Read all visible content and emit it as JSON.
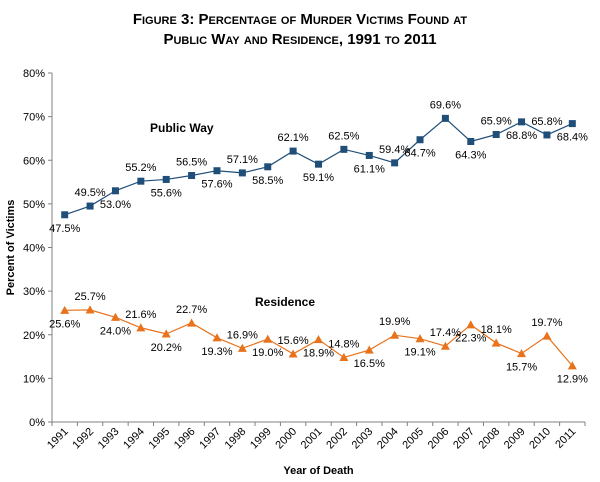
{
  "chart_data": {
    "type": "line",
    "title_line1": "Figure 3: Percentage of Murder Victims Found at",
    "title_line2": "Public Way and Residence, 1991 to 2011",
    "xlabel": "Year of Death",
    "ylabel": "Percent of Victims",
    "ylim": [
      0,
      80
    ],
    "yticks": [
      "0%",
      "10%",
      "20%",
      "30%",
      "40%",
      "50%",
      "60%",
      "70%",
      "80%"
    ],
    "grid": false,
    "x": [
      "1991",
      "1992",
      "1993",
      "1994",
      "1995",
      "1996",
      "1997",
      "1998",
      "1999",
      "2000",
      "2001",
      "2002",
      "2003",
      "2004",
      "2005",
      "2006",
      "2007",
      "2008",
      "2009",
      "2010",
      "2011"
    ],
    "series": [
      {
        "name": "Public Way",
        "color": "#1f4e79",
        "marker": "square",
        "values": [
          47.5,
          49.5,
          53.0,
          55.2,
          55.6,
          56.5,
          57.6,
          57.1,
          58.5,
          62.1,
          59.1,
          62.5,
          61.1,
          59.4,
          64.7,
          69.6,
          64.3,
          65.9,
          68.8,
          65.8,
          68.4
        ],
        "labels": [
          "47.5%",
          "49.5%",
          "53.0%",
          "55.2%",
          "55.6%",
          "56.5%",
          "57.6%",
          "57.1%",
          "58.5%",
          "62.1%",
          "59.1%",
          "62.5%",
          "61.1%",
          "59.4%",
          "64.7%",
          "69.6%",
          "64.3%",
          "65.9%",
          "68.8%",
          "65.8%",
          "68.4%"
        ]
      },
      {
        "name": "Residence",
        "color": "#e8731c",
        "marker": "triangle",
        "values": [
          25.6,
          25.7,
          24.0,
          21.6,
          20.2,
          22.7,
          19.3,
          16.9,
          19.0,
          15.6,
          18.9,
          14.8,
          16.5,
          19.9,
          19.1,
          17.4,
          22.3,
          18.1,
          15.7,
          19.7,
          12.9
        ],
        "labels": [
          "25.6%",
          "25.7%",
          "24.0%",
          "21.6%",
          "20.2%",
          "22.7%",
          "19.3%",
          "16.9%",
          "19.0%",
          "15.6%",
          "18.9%",
          "14.8%",
          "16.5%",
          "19.9%",
          "19.1%",
          "17.4%",
          "22.3%",
          "18.1%",
          "15.7%",
          "19.7%",
          "12.9%"
        ]
      }
    ]
  }
}
